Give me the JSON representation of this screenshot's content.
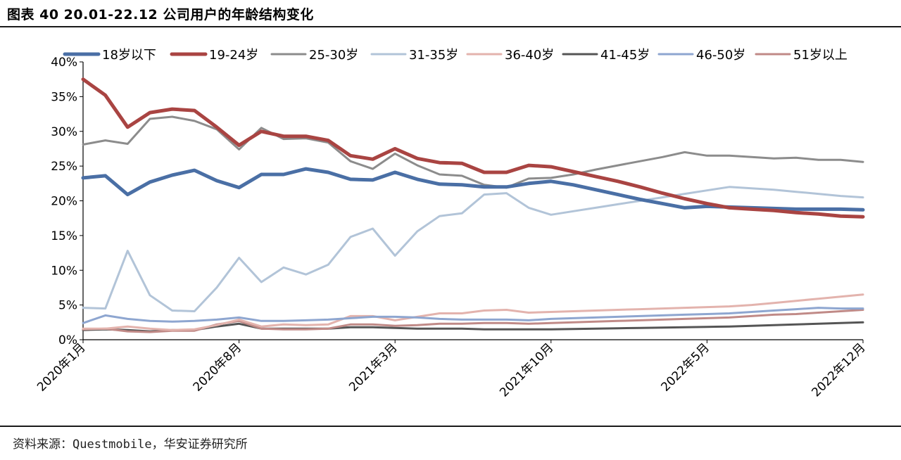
{
  "header": {
    "title": "图表 40 20.01-22.12 公司用户的年龄结构变化"
  },
  "footer": {
    "source": "资料来源：Questmobile，华安证券研究所"
  },
  "chart_data": {
    "type": "line",
    "title": "",
    "xlabel": "",
    "ylabel": "",
    "ylim": [
      0,
      40
    ],
    "y_ticks": [
      0,
      5,
      10,
      15,
      20,
      25,
      30,
      35,
      40
    ],
    "y_tick_labels": [
      "0%",
      "5%",
      "10%",
      "15%",
      "20%",
      "25%",
      "30%",
      "35%",
      "40%"
    ],
    "x_count": 36,
    "x_tick_indices": [
      0,
      7,
      14,
      21,
      28,
      35
    ],
    "x_tick_labels": [
      "2020年1月",
      "2020年8月",
      "2021年3月",
      "2021年10月",
      "2022年5月",
      "2022年12月"
    ],
    "legend_position": "top",
    "series": [
      {
        "name": "18岁以下",
        "color": "#4a6fa5",
        "width": 5,
        "values": [
          23.3,
          23.6,
          20.9,
          22.7,
          23.7,
          24.4,
          22.9,
          21.9,
          23.8,
          23.8,
          24.6,
          24.1,
          23.1,
          23.0,
          24.1,
          23.1,
          22.4,
          22.3,
          22.0,
          22.0,
          22.5,
          22.8,
          22.3,
          21.6,
          20.9,
          20.2,
          19.6,
          19.0,
          19.2,
          19.1,
          19.0,
          18.9,
          18.8,
          18.8,
          18.8,
          18.7
        ]
      },
      {
        "name": "19-24岁",
        "color": "#a94442",
        "width": 5,
        "values": [
          37.5,
          35.2,
          30.6,
          32.7,
          33.2,
          33.0,
          30.6,
          28.0,
          30.0,
          29.3,
          29.3,
          28.7,
          26.5,
          26.0,
          27.5,
          26.1,
          25.5,
          25.4,
          24.1,
          24.1,
          25.1,
          24.9,
          24.2,
          23.5,
          22.8,
          22.0,
          21.1,
          20.3,
          19.6,
          19.0,
          18.8,
          18.6,
          18.3,
          18.1,
          17.8,
          17.7
        ]
      },
      {
        "name": "25-30岁",
        "color": "#8c8c8c",
        "width": 3,
        "values": [
          28.1,
          28.7,
          28.2,
          31.8,
          32.1,
          31.5,
          30.3,
          27.4,
          30.5,
          28.9,
          29.0,
          28.4,
          25.7,
          24.6,
          26.8,
          25.1,
          23.8,
          23.6,
          22.3,
          21.9,
          23.2,
          23.3,
          23.8,
          24.5,
          25.1,
          25.7,
          26.3,
          27.0,
          26.5,
          26.5,
          26.3,
          26.1,
          26.2,
          25.9,
          25.9,
          25.6
        ]
      },
      {
        "name": "31-35岁",
        "color": "#b2c4d8",
        "width": 3,
        "values": [
          4.6,
          4.5,
          12.8,
          6.4,
          4.2,
          4.1,
          7.5,
          11.8,
          8.3,
          10.4,
          9.4,
          10.8,
          14.8,
          16.0,
          12.1,
          15.6,
          17.8,
          18.2,
          20.9,
          21.1,
          19.0,
          18.0,
          18.5,
          19.0,
          19.5,
          20.0,
          20.5,
          21.0,
          21.5,
          22.0,
          21.8,
          21.6,
          21.3,
          21.0,
          20.7,
          20.5
        ]
      },
      {
        "name": "36-40岁",
        "color": "#e3b3ad",
        "width": 3,
        "values": [
          1.6,
          1.6,
          1.9,
          1.6,
          1.4,
          1.5,
          2.1,
          2.9,
          1.9,
          2.2,
          2.1,
          2.2,
          3.4,
          3.4,
          2.8,
          3.3,
          3.8,
          3.8,
          4.2,
          4.3,
          3.9,
          4.0,
          4.1,
          4.2,
          4.3,
          4.4,
          4.5,
          4.6,
          4.7,
          4.8,
          5.0,
          5.3,
          5.6,
          5.9,
          6.2,
          6.5
        ]
      },
      {
        "name": "41-45岁",
        "color": "#555555",
        "width": 3,
        "values": [
          1.4,
          1.5,
          1.4,
          1.2,
          1.4,
          1.4,
          1.9,
          2.3,
          1.6,
          1.6,
          1.6,
          1.6,
          1.8,
          1.8,
          1.7,
          1.6,
          1.6,
          1.6,
          1.5,
          1.5,
          1.5,
          1.5,
          1.55,
          1.6,
          1.65,
          1.7,
          1.75,
          1.8,
          1.85,
          1.9,
          2.0,
          2.1,
          2.2,
          2.3,
          2.4,
          2.5
        ]
      },
      {
        "name": "46-50岁",
        "color": "#8ea6d0",
        "width": 3,
        "values": [
          2.4,
          3.5,
          3.0,
          2.7,
          2.6,
          2.7,
          2.9,
          3.2,
          2.7,
          2.7,
          2.8,
          2.9,
          3.1,
          3.3,
          3.3,
          3.2,
          3.0,
          2.9,
          2.9,
          2.9,
          2.8,
          3.0,
          3.1,
          3.2,
          3.3,
          3.4,
          3.5,
          3.6,
          3.7,
          3.8,
          4.0,
          4.2,
          4.4,
          4.6,
          4.5,
          4.5
        ]
      },
      {
        "name": "51岁以上",
        "color": "#c08a87",
        "width": 3,
        "values": [
          1.5,
          1.6,
          1.2,
          1.1,
          1.3,
          1.3,
          2.2,
          2.7,
          1.6,
          1.5,
          1.5,
          1.6,
          2.2,
          2.2,
          2.0,
          2.1,
          2.3,
          2.3,
          2.4,
          2.4,
          2.3,
          2.4,
          2.5,
          2.6,
          2.7,
          2.8,
          2.9,
          3.0,
          3.1,
          3.2,
          3.4,
          3.6,
          3.7,
          3.9,
          4.1,
          4.3
        ]
      }
    ]
  }
}
